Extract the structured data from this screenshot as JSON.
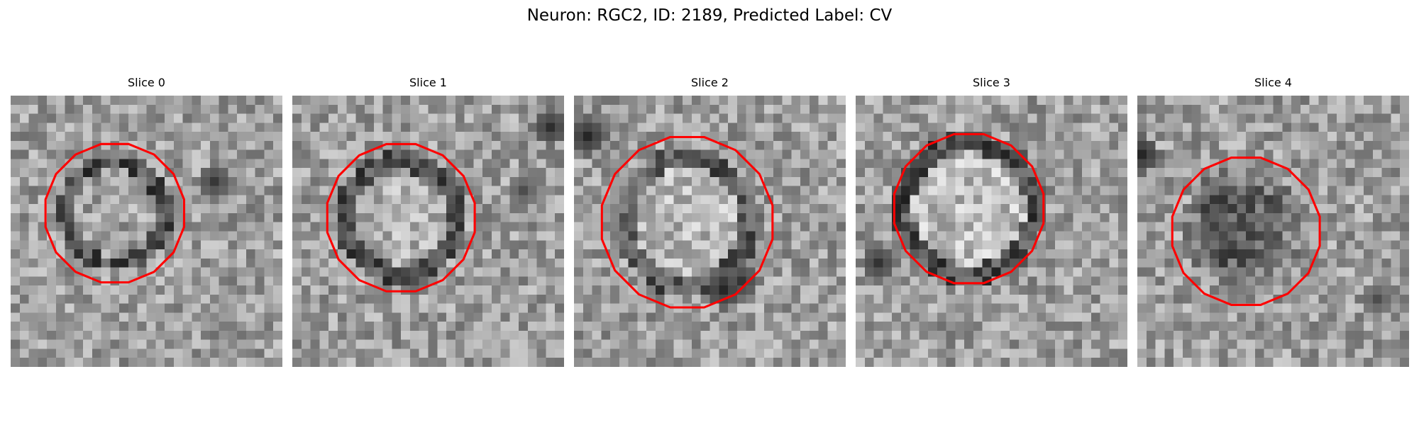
{
  "figure": {
    "title": "Neuron: RGC2, ID: 2189, Predicted Label: CV"
  },
  "colors": {
    "contour": "#ff0000",
    "background": "#ffffff",
    "colormap": "grayscale"
  },
  "panels": [
    {
      "title": "Slice 0"
    },
    {
      "title": "Slice 1"
    },
    {
      "title": "Slice 2"
    },
    {
      "title": "Slice 3"
    },
    {
      "title": "Slice 4"
    }
  ]
}
